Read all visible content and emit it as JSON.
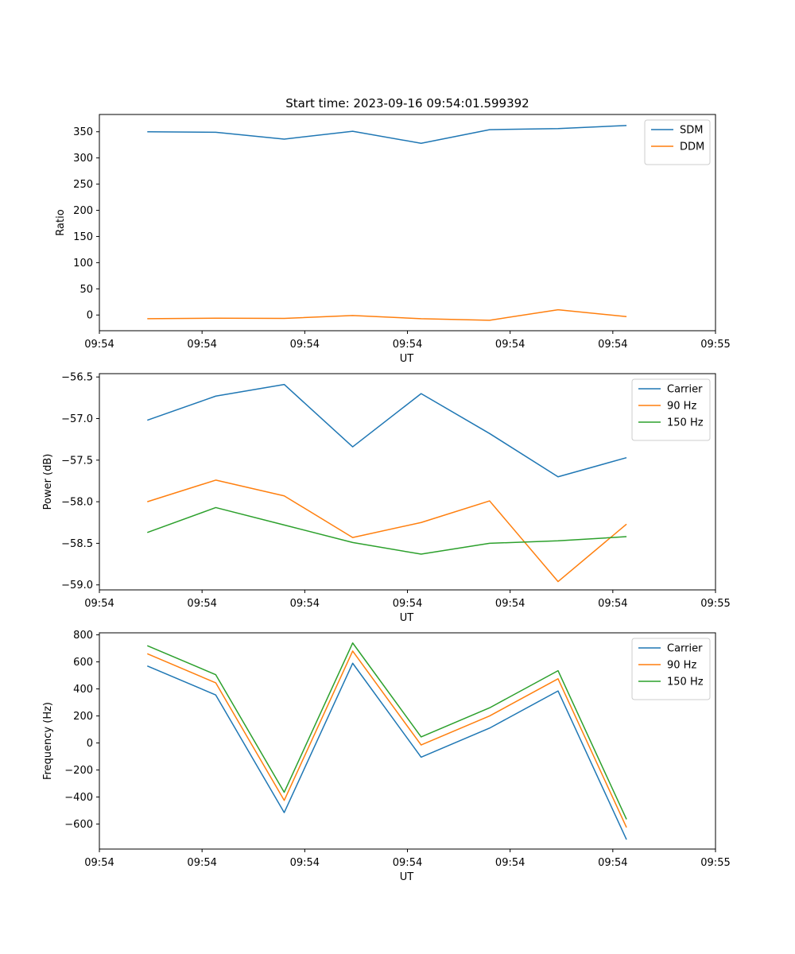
{
  "chart_data": [
    {
      "type": "line",
      "title": "Start time: 2023-09-16 09:54:01.599392",
      "xlabel": "UT",
      "ylabel": "Ratio",
      "xlim": [
        0,
        9
      ],
      "ylim": [
        -30,
        383
      ],
      "x_ticks": [
        0,
        1.5,
        3,
        4.5,
        6,
        7.5,
        9
      ],
      "x_tick_labels": [
        "09:54",
        "09:54",
        "09:54",
        "09:54",
        "09:54",
        "09:54",
        "09:55"
      ],
      "y_ticks": [
        0,
        50,
        100,
        150,
        200,
        250,
        300,
        350
      ],
      "y_tick_labels": [
        "0",
        "50",
        "100",
        "150",
        "200",
        "250",
        "300",
        "350"
      ],
      "x": [
        0.7,
        1.7,
        2.7,
        3.7,
        4.7,
        5.7,
        6.7,
        7.7
      ],
      "series": [
        {
          "name": "SDM",
          "color": "#1f77b4",
          "values": [
            350,
            349,
            336,
            351,
            328,
            354,
            356,
            362
          ]
        },
        {
          "name": "DDM",
          "color": "#ff7f0e",
          "values": [
            -7,
            -6,
            -6.5,
            -1,
            -7,
            -10,
            10,
            -3
          ]
        }
      ],
      "legend": "top-right",
      "grid": false
    },
    {
      "type": "line",
      "title": "",
      "xlabel": "UT",
      "ylabel": "Power (dB)",
      "xlim": [
        0,
        9
      ],
      "ylim": [
        -59.06,
        -56.46
      ],
      "x_ticks": [
        0,
        1.5,
        3,
        4.5,
        6,
        7.5,
        9
      ],
      "x_tick_labels": [
        "09:54",
        "09:54",
        "09:54",
        "09:54",
        "09:54",
        "09:54",
        "09:55"
      ],
      "y_ticks": [
        -59.0,
        -58.5,
        -58.0,
        -57.5,
        -57.0,
        -56.5
      ],
      "y_tick_labels": [
        "−59.0",
        "−58.5",
        "−58.0",
        "−57.5",
        "−57.0",
        "−56.5"
      ],
      "x": [
        0.7,
        1.7,
        2.7,
        3.7,
        4.7,
        5.7,
        6.7,
        7.7
      ],
      "series": [
        {
          "name": "Carrier",
          "color": "#1f77b4",
          "values": [
            -57.02,
            -56.73,
            -56.59,
            -57.34,
            -56.7,
            -57.18,
            -57.7,
            -57.47
          ]
        },
        {
          "name": "90 Hz",
          "color": "#ff7f0e",
          "values": [
            -58.0,
            -57.74,
            -57.93,
            -58.43,
            -58.25,
            -57.99,
            -58.96,
            -58.27
          ]
        },
        {
          "name": "150 Hz",
          "color": "#2ca02c",
          "values": [
            -58.37,
            -58.07,
            -58.28,
            -58.49,
            -58.63,
            -58.5,
            -58.47,
            -58.42
          ]
        }
      ],
      "legend": "top-right",
      "grid": false
    },
    {
      "type": "line",
      "title": "",
      "xlabel": "UT",
      "ylabel": "Frequency (Hz)",
      "xlim": [
        0,
        9
      ],
      "ylim": [
        -785,
        815
      ],
      "x_ticks": [
        0,
        1.5,
        3,
        4.5,
        6,
        7.5,
        9
      ],
      "x_tick_labels": [
        "09:54",
        "09:54",
        "09:54",
        "09:54",
        "09:54",
        "09:54",
        "09:55"
      ],
      "y_ticks": [
        -600,
        -400,
        -200,
        0,
        200,
        400,
        600,
        800
      ],
      "y_tick_labels": [
        "−600",
        "−400",
        "−200",
        "0",
        "200",
        "400",
        "600",
        "800"
      ],
      "x": [
        0.7,
        1.7,
        2.7,
        3.7,
        4.7,
        5.7,
        6.7,
        7.7
      ],
      "series": [
        {
          "name": "Carrier",
          "color": "#1f77b4",
          "values": [
            570,
            355,
            -515,
            590,
            -105,
            110,
            385,
            -715
          ]
        },
        {
          "name": "90 Hz",
          "color": "#ff7f0e",
          "values": [
            660,
            445,
            -425,
            680,
            -15,
            200,
            475,
            -625
          ]
        },
        {
          "name": "150 Hz",
          "color": "#2ca02c",
          "values": [
            720,
            505,
            -365,
            740,
            45,
            260,
            535,
            -565
          ]
        }
      ],
      "legend": "top-right",
      "grid": false
    }
  ]
}
